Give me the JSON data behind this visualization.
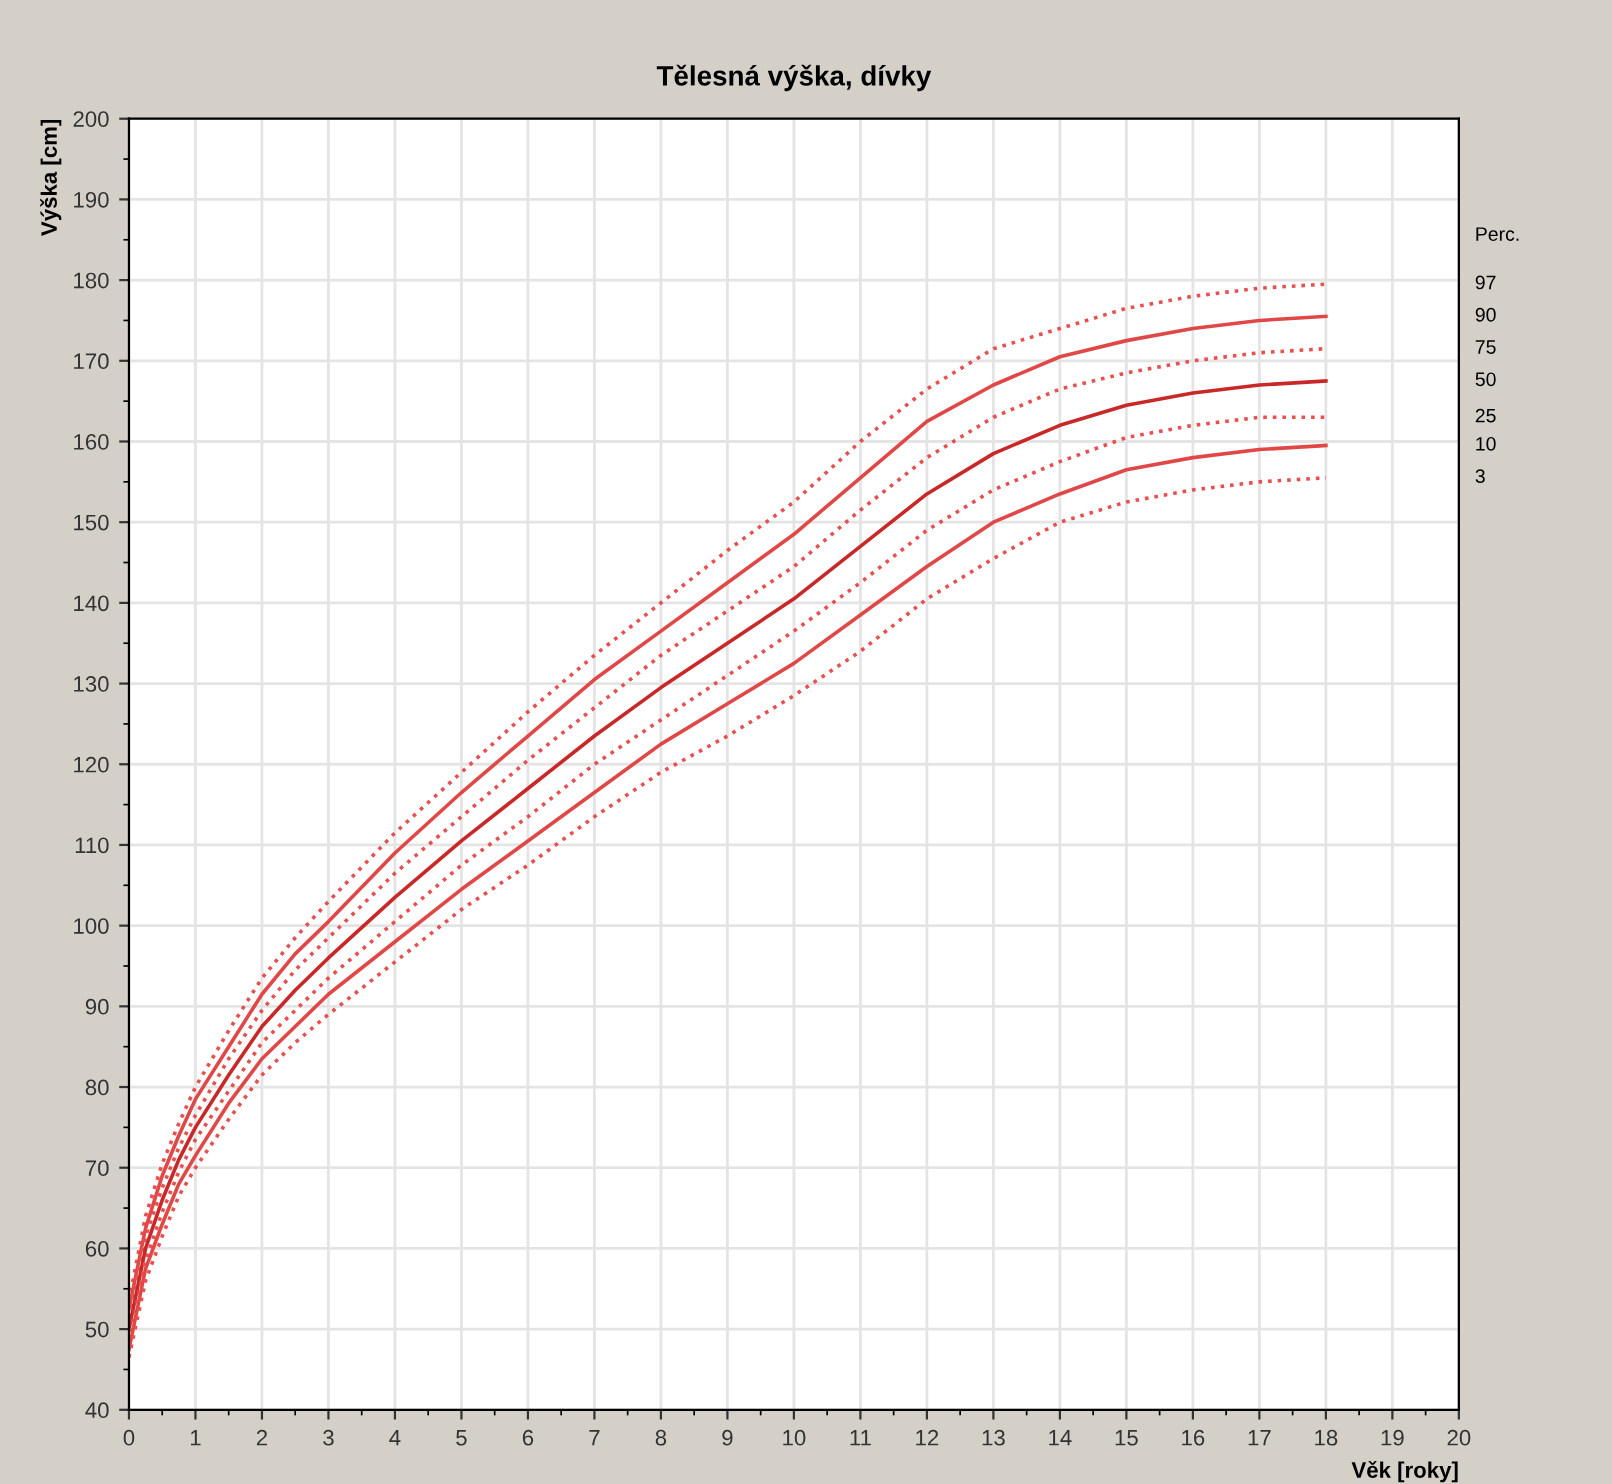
{
  "chart_data": {
    "type": "line",
    "title": "Tělesná výška, dívky",
    "xlabel": "Věk [roky]",
    "ylabel": "Výška [cm]",
    "legend_title": "Perc.",
    "x": [
      0,
      0.25,
      0.5,
      0.75,
      1,
      1.5,
      2,
      2.5,
      3,
      4,
      5,
      6,
      7,
      8,
      9,
      10,
      11,
      12,
      13,
      14,
      15,
      16,
      17,
      18
    ],
    "series": [
      {
        "name": "97",
        "color": "#e85050",
        "line_style": "dotted",
        "values": [
          53.5,
          64,
          70.5,
          75.5,
          80,
          87,
          93.5,
          98.5,
          103,
          111.5,
          119,
          126.5,
          133.5,
          140,
          146.5,
          152.5,
          160,
          166.5,
          171.5,
          174,
          176.5,
          178,
          179,
          179.5
        ]
      },
      {
        "name": "90",
        "color": "#e04848",
        "line_style": "solid",
        "values": [
          52.5,
          62.5,
          69,
          74,
          78.5,
          85,
          91.5,
          96.5,
          100.5,
          109,
          116.5,
          123.5,
          130.5,
          136.5,
          142.5,
          148.5,
          155.5,
          162.5,
          167,
          170.5,
          172.5,
          174,
          175,
          175.5
        ]
      },
      {
        "name": "75",
        "color": "#e85050",
        "line_style": "dotted",
        "values": [
          51.5,
          61.5,
          67.5,
          72.5,
          76.5,
          83.5,
          89.5,
          94.5,
          98.5,
          106.5,
          113.5,
          120.5,
          127,
          133.5,
          139,
          144.5,
          151.5,
          158,
          163,
          166.5,
          168.5,
          170,
          171,
          171.5
        ]
      },
      {
        "name": "50",
        "color": "#c82828",
        "line_style": "solid",
        "values": [
          50,
          60,
          66,
          71,
          75,
          81.5,
          87.5,
          92,
          96,
          103.5,
          110.5,
          117,
          123.5,
          129.5,
          135,
          140.5,
          147,
          153.5,
          158.5,
          162,
          164.5,
          166,
          167,
          167.5
        ]
      },
      {
        "name": "25",
        "color": "#e85050",
        "line_style": "dotted",
        "values": [
          48.5,
          58.5,
          64.5,
          69.5,
          73.5,
          79.5,
          85.5,
          89.5,
          93.5,
          100.5,
          107.5,
          113.5,
          120,
          125.5,
          131,
          136.5,
          142.5,
          149,
          154,
          157.5,
          160.5,
          162,
          163,
          163
        ]
      },
      {
        "name": "10",
        "color": "#e04848",
        "line_style": "solid",
        "values": [
          47.5,
          57.5,
          63,
          68,
          71.5,
          78,
          83.5,
          87.5,
          91.5,
          98,
          104.5,
          110.5,
          116.5,
          122.5,
          127.5,
          132.5,
          138.5,
          144.5,
          150,
          153.5,
          156.5,
          158,
          159,
          159.5
        ]
      },
      {
        "name": "3",
        "color": "#e85050",
        "line_style": "dotted",
        "values": [
          46.5,
          56,
          61.5,
          66.5,
          70,
          76,
          81.5,
          85.5,
          89,
          95.5,
          102,
          107.5,
          113.5,
          119,
          123.5,
          128.5,
          134,
          140.5,
          145.5,
          150,
          152.5,
          154,
          155,
          155.5
        ]
      }
    ],
    "xlim": [
      0,
      20
    ],
    "ylim": [
      40,
      200
    ],
    "xticks": [
      0,
      1,
      2,
      3,
      4,
      5,
      6,
      7,
      8,
      9,
      10,
      11,
      12,
      13,
      14,
      15,
      16,
      17,
      18,
      19,
      20
    ],
    "yticks": [
      40,
      50,
      60,
      70,
      80,
      90,
      100,
      110,
      120,
      130,
      140,
      150,
      160,
      170,
      180,
      190,
      200
    ],
    "grid": true,
    "legend": false,
    "marker": "none"
  }
}
